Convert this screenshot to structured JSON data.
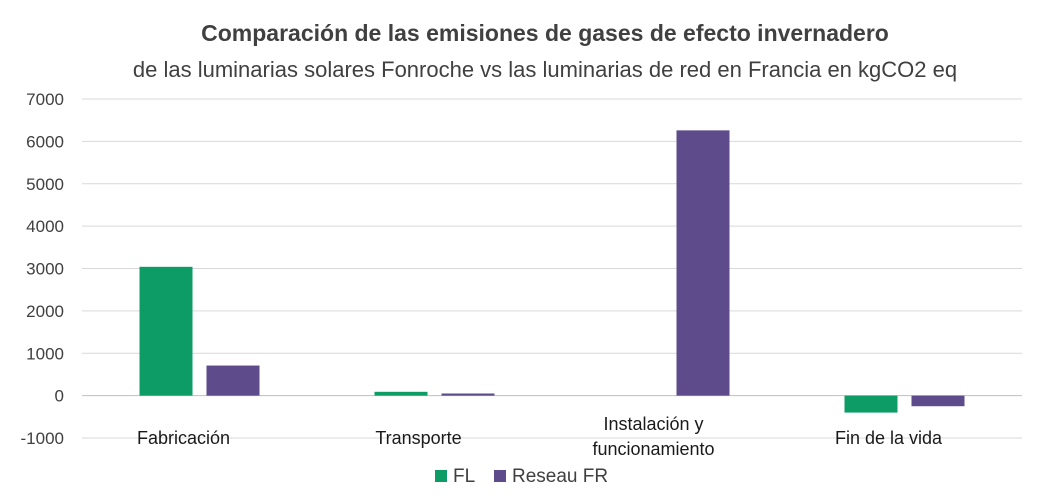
{
  "chart_data": {
    "type": "bar",
    "title": "Comparación de las emisiones de gases de efecto invernadero",
    "subtitle": "de las luminarias solares Fonroche vs las luminarias de red en Francia en kgCO2 eq",
    "categories": [
      [
        "Fabricación"
      ],
      [
        "Transporte"
      ],
      [
        "Instalación y",
        "funcionamiento"
      ],
      [
        "Fin de la vida"
      ]
    ],
    "series": [
      {
        "name": "FL",
        "color": "#0e9c66",
        "values": [
          3040,
          90,
          0,
          -400
        ]
      },
      {
        "name": "Reseau FR",
        "color": "#5e4b8b",
        "values": [
          710,
          50,
          6260,
          -250
        ]
      }
    ],
    "ylim": [
      -1000,
      7000
    ],
    "yticks": [
      -1000,
      0,
      1000,
      2000,
      3000,
      4000,
      5000,
      6000,
      7000
    ],
    "grid": true,
    "legend": "bottom-center",
    "xlabel": "",
    "ylabel": ""
  }
}
